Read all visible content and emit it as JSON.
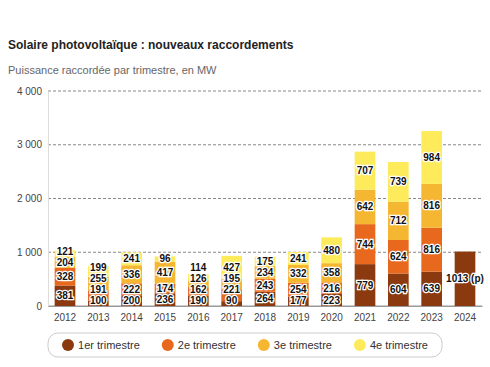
{
  "chart_data": {
    "type": "bar",
    "title": "Solaire photovoltaïque : nouveaux raccordements",
    "subtitle": "Puissance raccordée par trimestre, en MW",
    "categories": [
      "2012",
      "2013",
      "2014",
      "2015",
      "2016",
      "2017",
      "2018",
      "2019",
      "2020",
      "2021",
      "2022",
      "2023",
      "2024"
    ],
    "series": [
      {
        "name": "1er trimestre",
        "color": "#8b3a0f",
        "values": [
          381,
          100,
          200,
          236,
          190,
          90,
          264,
          177,
          223,
          779,
          604,
          639,
          1013
        ],
        "value_labels": [
          "381",
          "100",
          "200",
          "236",
          "190",
          "90",
          "264",
          "177",
          "223",
          "779",
          "604",
          "639",
          "1013 (p)"
        ]
      },
      {
        "name": "2e trimestre",
        "color": "#e8691e",
        "values": [
          328,
          191,
          222,
          174,
          162,
          221,
          243,
          254,
          216,
          744,
          624,
          816,
          null
        ]
      },
      {
        "name": "3e trimestre",
        "color": "#f5b731",
        "values": [
          204,
          255,
          336,
          417,
          126,
          195,
          234,
          332,
          358,
          642,
          712,
          816,
          null
        ]
      },
      {
        "name": "4e trimestre",
        "color": "#fdeb5c",
        "values": [
          121,
          199,
          241,
          96,
          114,
          427,
          175,
          241,
          480,
          707,
          739,
          984,
          null
        ]
      }
    ],
    "ylim": [
      0,
      4000
    ],
    "yticks": [
      0,
      {
        "value": 1000,
        "label": "1 000"
      },
      {
        "value": 2000,
        "label": "2 000"
      },
      {
        "value": 3000,
        "label": "3 000"
      },
      {
        "value": 4000,
        "label": "4 000"
      }
    ],
    "grid": true,
    "stacked": true,
    "data_labels": true,
    "legend": "bottom"
  }
}
